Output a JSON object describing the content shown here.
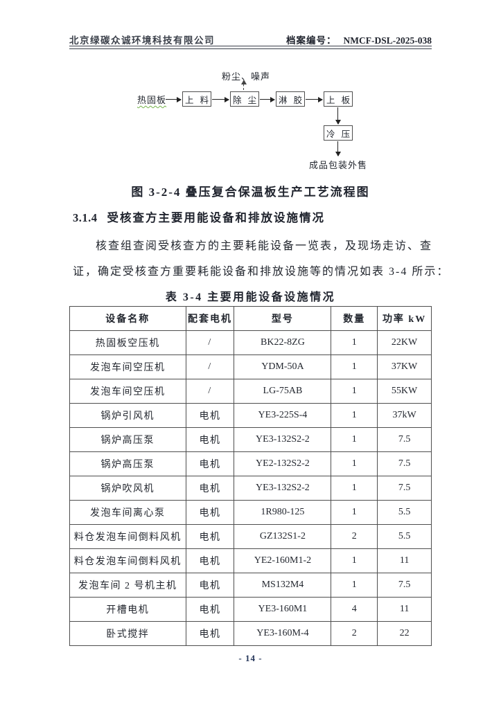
{
  "header": {
    "company": "北京绿碳众诚环境科技有限公司",
    "archive_label": "档案编号：",
    "archive_code": "NMCF-DSL-2025-038"
  },
  "flowchart": {
    "input_label": "热固板",
    "emission_label": "粉尘、噪声",
    "boxes": [
      "上 料",
      "除 尘",
      "淋 胶",
      "上 板",
      "冷 压"
    ],
    "output_label": "成品包装外售"
  },
  "figure": {
    "caption": "图 3-2-4 叠压复合保温板生产工艺流程图"
  },
  "section": {
    "number": "3.1.4",
    "title": "受核查方主要用能设备和排放设施情况",
    "paragraph_line1": "核查组查阅受核查方的主要耗能设备一览表，及现场走访、查",
    "paragraph_line2": "证，确定受核查方重要耗能设备和排放设施等的情况如表 3-4 所示："
  },
  "table": {
    "caption": "表 3-4 主要用能设备设施情况",
    "headers": [
      "设备名称",
      "配套电机",
      "型号",
      "数量",
      "功率 kW"
    ],
    "rows": [
      [
        "热固板空压机",
        "/",
        "BK22-8ZG",
        "1",
        "22KW"
      ],
      [
        "发泡车间空压机",
        "/",
        "YDM-50A",
        "1",
        "37KW"
      ],
      [
        "发泡车间空压机",
        "/",
        "LG-75AB",
        "1",
        "55KW"
      ],
      [
        "锅炉引风机",
        "电机",
        "YE3-225S-4",
        "1",
        "37kW"
      ],
      [
        "锅炉高压泵",
        "电机",
        "YE3-132S2-2",
        "1",
        "7.5"
      ],
      [
        "锅炉高压泵",
        "电机",
        "YE2-132S2-2",
        "1",
        "7.5"
      ],
      [
        "锅炉吹风机",
        "电机",
        "YE3-132S2-2",
        "1",
        "7.5"
      ],
      [
        "发泡车间离心泵",
        "电机",
        "1R980-125",
        "1",
        "5.5"
      ],
      [
        "料仓发泡车间倒料风机",
        "电机",
        "GZ132S1-2",
        "2",
        "5.5"
      ],
      [
        "料仓发泡车间倒料风机",
        "电机",
        "YE2-160M1-2",
        "1",
        "11"
      ],
      [
        "发泡车间 2 号机主机",
        "电机",
        "MS132M4",
        "1",
        "7.5"
      ],
      [
        "开槽电机",
        "电机",
        "YE3-160M1",
        "4",
        "11"
      ],
      [
        "卧式搅拌",
        "电机",
        "YE3-160M-4",
        "2",
        "22"
      ]
    ]
  },
  "footer": {
    "page_number": "- 14 -"
  },
  "colors": {
    "text": "#272b33",
    "border": "#4d4d4d",
    "squiggle_green": "#74b24a",
    "page_number": "#25365a"
  }
}
